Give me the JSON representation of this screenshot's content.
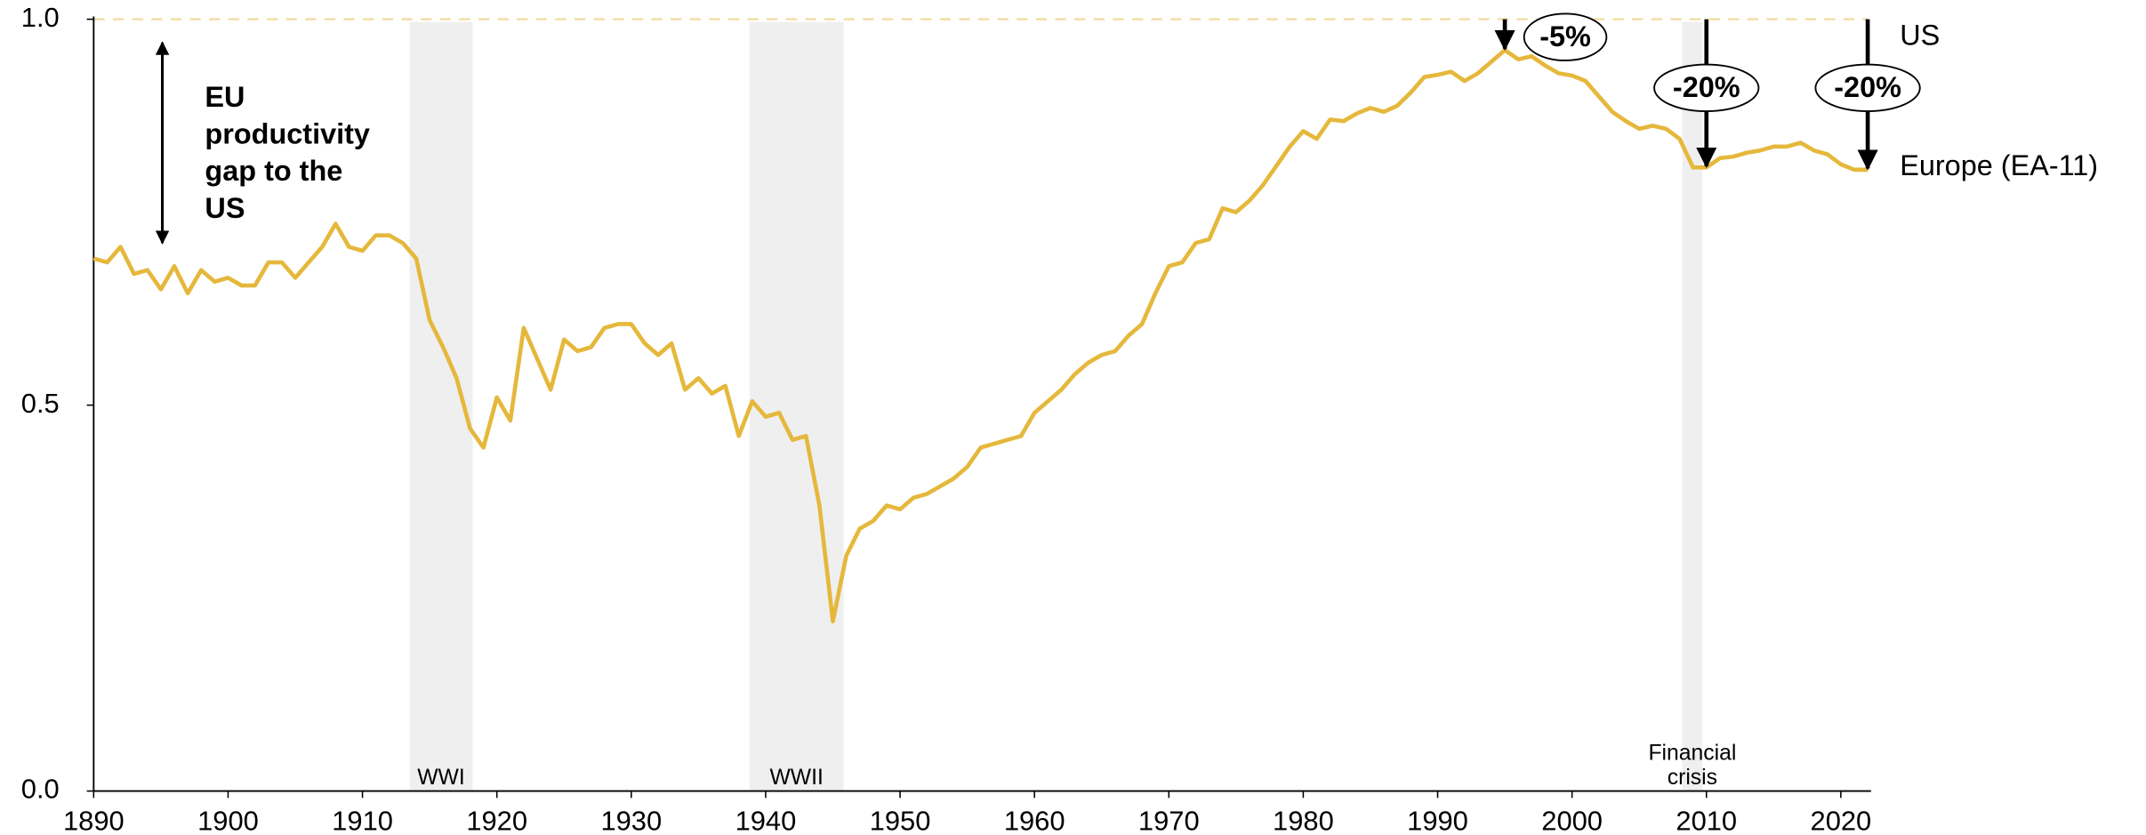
{
  "chart_data": {
    "type": "line",
    "x": [
      1890,
      1891,
      1892,
      1893,
      1894,
      1895,
      1896,
      1897,
      1898,
      1899,
      1900,
      1901,
      1902,
      1903,
      1904,
      1905,
      1906,
      1907,
      1908,
      1909,
      1910,
      1911,
      1912,
      1913,
      1914,
      1915,
      1916,
      1917,
      1918,
      1919,
      1920,
      1921,
      1922,
      1923,
      1924,
      1925,
      1926,
      1927,
      1928,
      1929,
      1930,
      1931,
      1932,
      1933,
      1934,
      1935,
      1936,
      1937,
      1938,
      1939,
      1940,
      1941,
      1942,
      1943,
      1944,
      1945,
      1946,
      1947,
      1948,
      1949,
      1950,
      1951,
      1952,
      1953,
      1954,
      1955,
      1956,
      1957,
      1958,
      1959,
      1960,
      1961,
      1962,
      1963,
      1964,
      1965,
      1966,
      1967,
      1968,
      1969,
      1970,
      1971,
      1972,
      1973,
      1974,
      1975,
      1976,
      1977,
      1978,
      1979,
      1980,
      1981,
      1982,
      1983,
      1984,
      1985,
      1986,
      1987,
      1988,
      1989,
      1990,
      1991,
      1992,
      1993,
      1994,
      1995,
      1996,
      1997,
      1998,
      1999,
      2000,
      2001,
      2002,
      2003,
      2004,
      2005,
      2006,
      2007,
      2008,
      2009,
      2010,
      2011,
      2012,
      2013,
      2014,
      2015,
      2016,
      2017,
      2018,
      2019,
      2020,
      2021,
      2022
    ],
    "series": [
      {
        "name": "Europe (EA-11)",
        "color": "#e5b83c",
        "values": [
          0.69,
          0.685,
          0.705,
          0.67,
          0.675,
          0.65,
          0.68,
          0.645,
          0.675,
          0.66,
          0.665,
          0.655,
          0.655,
          0.685,
          0.685,
          0.665,
          0.685,
          0.705,
          0.735,
          0.705,
          0.7,
          0.72,
          0.72,
          0.71,
          0.69,
          0.61,
          0.575,
          0.535,
          0.47,
          0.445,
          0.51,
          0.48,
          0.6,
          0.56,
          0.52,
          0.585,
          0.57,
          0.575,
          0.6,
          0.605,
          0.605,
          0.58,
          0.565,
          0.58,
          0.52,
          0.535,
          0.515,
          0.525,
          0.46,
          0.505,
          0.485,
          0.49,
          0.455,
          0.46,
          0.37,
          0.22,
          0.305,
          0.34,
          0.35,
          0.37,
          0.365,
          0.38,
          0.385,
          0.395,
          0.405,
          0.42,
          0.445,
          0.45,
          0.455,
          0.46,
          0.49,
          0.505,
          0.52,
          0.54,
          0.555,
          0.565,
          0.57,
          0.59,
          0.605,
          0.645,
          0.68,
          0.685,
          0.71,
          0.715,
          0.755,
          0.75,
          0.765,
          0.785,
          0.81,
          0.835,
          0.855,
          0.845,
          0.87,
          0.868,
          0.878,
          0.885,
          0.88,
          0.888,
          0.905,
          0.925,
          0.928,
          0.932,
          0.92,
          0.93,
          0.945,
          0.96,
          0.948,
          0.952,
          0.94,
          0.93,
          0.927,
          0.92,
          0.9,
          0.88,
          0.868,
          0.858,
          0.862,
          0.858,
          0.845,
          0.808,
          0.808,
          0.82,
          0.822,
          0.827,
          0.83,
          0.835,
          0.835,
          0.84,
          0.83,
          0.825,
          0.812,
          0.805,
          0.805
        ]
      }
    ],
    "reference": {
      "name": "US",
      "value": 1,
      "color": "#f2dba0"
    },
    "xlim": [
      1890,
      2022
    ],
    "ylim": [
      0,
      1
    ],
    "xticks": [
      1890,
      1900,
      1910,
      1920,
      1930,
      1940,
      1950,
      1960,
      1970,
      1980,
      1990,
      2000,
      2010,
      2020
    ],
    "yticks": [
      {
        "value": 0,
        "label": "0.0"
      },
      {
        "value": 0.5,
        "label": "0.5"
      },
      {
        "value": 1,
        "label": "1.0"
      }
    ],
    "shaded": [
      {
        "start": 1913.5,
        "end": 1918.2,
        "label": [
          "WWI"
        ]
      },
      {
        "start": 1938.8,
        "end": 1945.8,
        "label": [
          "WWII"
        ]
      },
      {
        "start": 2008.2,
        "end": 2009.7,
        "label": [
          "Financial",
          "crisis"
        ]
      }
    ],
    "gap_note": [
      "EU",
      "productivity",
      "gap to the",
      "US"
    ],
    "gaps": [
      {
        "year": 1995,
        "label": "-5%"
      },
      {
        "year": 2010,
        "label": "-20%"
      },
      {
        "year": 2022,
        "label": "-20%"
      }
    ]
  }
}
